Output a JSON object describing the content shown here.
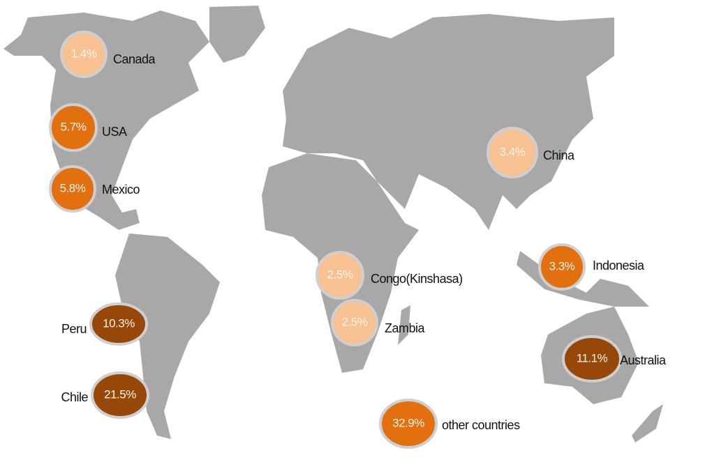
{
  "markers": [
    {
      "country": "Canada",
      "share": "1.4%",
      "color": "#f8c192"
    },
    {
      "country": "USA",
      "share": "5.7%",
      "color": "#e3700e"
    },
    {
      "country": "Mexico",
      "share": "5.8%",
      "color": "#e3700e"
    },
    {
      "country": "Peru",
      "share": "10.3%",
      "color": "#974708"
    },
    {
      "country": "Chile",
      "share": "21.5%",
      "color": "#974708"
    },
    {
      "country": "Congo(Kinshasa)",
      "share": "2.5%",
      "color": "#f8c192"
    },
    {
      "country": "Zambia",
      "share": "2.5%",
      "color": "#f8c192"
    },
    {
      "country": "China",
      "share": "3.4%",
      "color": "#f8c192"
    },
    {
      "country": "Indonesia",
      "share": "3.3%",
      "color": "#e3700e"
    },
    {
      "country": "Australia",
      "share": "11.1%",
      "color": "#974708"
    },
    {
      "country": "other countries",
      "share": "32.9%",
      "color": "#e3700e"
    }
  ]
}
